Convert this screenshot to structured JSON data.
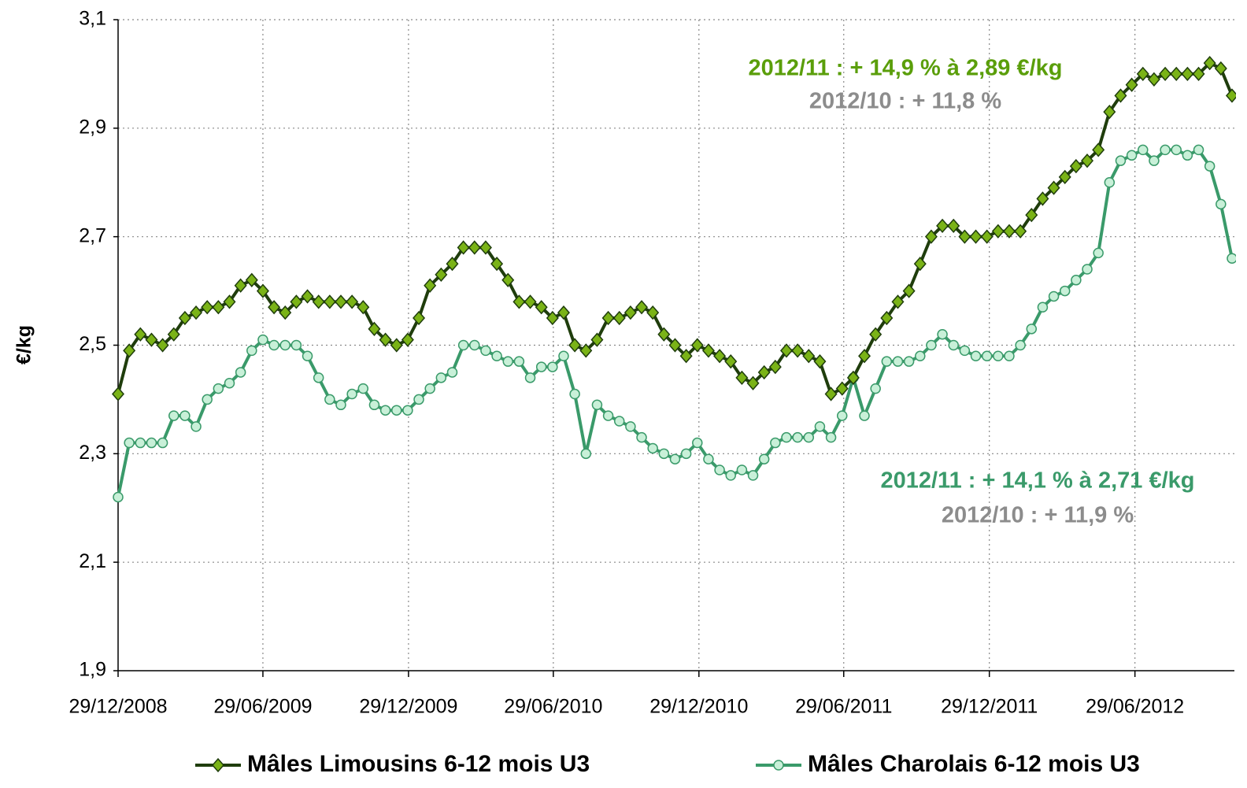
{
  "chart_data": {
    "type": "line",
    "y_label": "€/kg",
    "x": [
      "2008-12-29",
      "2009-01-12",
      "2009-01-26",
      "2009-02-09",
      "2009-02-23",
      "2009-03-09",
      "2009-03-23",
      "2009-04-06",
      "2009-04-20",
      "2009-05-04",
      "2009-05-18",
      "2009-06-01",
      "2009-06-15",
      "2009-06-29",
      "2009-07-13",
      "2009-07-27",
      "2009-08-10",
      "2009-08-24",
      "2009-09-07",
      "2009-09-21",
      "2009-10-05",
      "2009-10-19",
      "2009-11-02",
      "2009-11-16",
      "2009-11-30",
      "2009-12-14",
      "2009-12-28",
      "2010-01-11",
      "2010-01-25",
      "2010-02-08",
      "2010-02-22",
      "2010-03-08",
      "2010-03-22",
      "2010-04-05",
      "2010-04-19",
      "2010-05-03",
      "2010-05-17",
      "2010-05-31",
      "2010-06-14",
      "2010-06-28",
      "2010-07-12",
      "2010-07-26",
      "2010-08-09",
      "2010-08-23",
      "2010-09-06",
      "2010-09-20",
      "2010-10-04",
      "2010-10-18",
      "2010-11-01",
      "2010-11-15",
      "2010-11-29",
      "2010-12-13",
      "2010-12-27",
      "2011-01-10",
      "2011-01-24",
      "2011-02-07",
      "2011-02-21",
      "2011-03-07",
      "2011-03-21",
      "2011-04-04",
      "2011-04-18",
      "2011-05-02",
      "2011-05-16",
      "2011-05-30",
      "2011-06-13",
      "2011-06-27",
      "2011-07-11",
      "2011-07-25",
      "2011-08-08",
      "2011-08-22",
      "2011-09-05",
      "2011-09-19",
      "2011-10-03",
      "2011-10-17",
      "2011-10-31",
      "2011-11-14",
      "2011-11-28",
      "2011-12-12",
      "2011-12-26",
      "2012-01-09",
      "2012-01-23",
      "2012-02-06",
      "2012-02-20",
      "2012-03-05",
      "2012-03-19",
      "2012-04-02",
      "2012-04-16",
      "2012-04-30",
      "2012-05-14",
      "2012-05-28",
      "2012-06-11",
      "2012-06-25",
      "2012-07-09",
      "2012-07-23",
      "2012-08-06",
      "2012-08-20",
      "2012-09-03",
      "2012-09-17",
      "2012-10-01",
      "2012-10-15",
      "2012-10-29"
    ],
    "series": [
      {
        "name": "Mâles Limousins 6-12 mois U3",
        "color": "#1f3d0c",
        "marker_color": "#7ab317",
        "marker": "diamond",
        "values": [
          2.41,
          2.49,
          2.52,
          2.51,
          2.5,
          2.52,
          2.55,
          2.56,
          2.57,
          2.57,
          2.58,
          2.61,
          2.62,
          2.6,
          2.57,
          2.56,
          2.58,
          2.59,
          2.58,
          2.58,
          2.58,
          2.58,
          2.57,
          2.53,
          2.51,
          2.5,
          2.51,
          2.55,
          2.61,
          2.63,
          2.65,
          2.68,
          2.68,
          2.68,
          2.65,
          2.62,
          2.58,
          2.58,
          2.57,
          2.55,
          2.56,
          2.5,
          2.49,
          2.51,
          2.55,
          2.55,
          2.56,
          2.57,
          2.56,
          2.52,
          2.5,
          2.48,
          2.5,
          2.49,
          2.48,
          2.47,
          2.44,
          2.43,
          2.45,
          2.46,
          2.49,
          2.49,
          2.48,
          2.47,
          2.41,
          2.42,
          2.44,
          2.48,
          2.52,
          2.55,
          2.58,
          2.6,
          2.65,
          2.7,
          2.72,
          2.72,
          2.7,
          2.7,
          2.7,
          2.71,
          2.71,
          2.71,
          2.74,
          2.77,
          2.79,
          2.81,
          2.83,
          2.84,
          2.86,
          2.93,
          2.96,
          2.98,
          3.0,
          2.99,
          3.0,
          3.0,
          3.0,
          3.0,
          3.02,
          3.01,
          2.96
        ]
      },
      {
        "name": "Mâles Charolais 6-12 mois U3",
        "color": "#3a9a6a",
        "marker_color": "#c8f0d8",
        "marker": "circle",
        "values": [
          2.22,
          2.32,
          2.32,
          2.32,
          2.32,
          2.37,
          2.37,
          2.35,
          2.4,
          2.42,
          2.43,
          2.45,
          2.49,
          2.51,
          2.5,
          2.5,
          2.5,
          2.48,
          2.44,
          2.4,
          2.39,
          2.41,
          2.42,
          2.39,
          2.38,
          2.38,
          2.38,
          2.4,
          2.42,
          2.44,
          2.45,
          2.5,
          2.5,
          2.49,
          2.48,
          2.47,
          2.47,
          2.44,
          2.46,
          2.46,
          2.48,
          2.41,
          2.3,
          2.39,
          2.37,
          2.36,
          2.35,
          2.33,
          2.31,
          2.3,
          2.29,
          2.3,
          2.32,
          2.29,
          2.27,
          2.26,
          2.27,
          2.26,
          2.29,
          2.32,
          2.33,
          2.33,
          2.33,
          2.35,
          2.33,
          2.37,
          2.44,
          2.37,
          2.42,
          2.47,
          2.47,
          2.47,
          2.48,
          2.5,
          2.52,
          2.5,
          2.49,
          2.48,
          2.48,
          2.48,
          2.48,
          2.5,
          2.53,
          2.57,
          2.59,
          2.6,
          2.62,
          2.64,
          2.67,
          2.8,
          2.84,
          2.85,
          2.86,
          2.84,
          2.86,
          2.86,
          2.85,
          2.86,
          2.83,
          2.76,
          2.66
        ]
      }
    ],
    "xlim": [
      "2008-12-29",
      "2012-11-01"
    ],
    "xticks": [
      {
        "value": "2008-12-29",
        "label": "29/12/2008"
      },
      {
        "value": "2009-06-29",
        "label": "29/06/2009"
      },
      {
        "value": "2009-12-29",
        "label": "29/12/2009"
      },
      {
        "value": "2010-06-29",
        "label": "29/06/2010"
      },
      {
        "value": "2010-12-29",
        "label": "29/12/2010"
      },
      {
        "value": "2011-06-29",
        "label": "29/06/2011"
      },
      {
        "value": "2011-12-29",
        "label": "29/12/2011"
      },
      {
        "value": "2012-06-29",
        "label": "29/06/2012"
      }
    ],
    "ylim": [
      1.9,
      3.1
    ],
    "yticks": [
      {
        "value": 1.9,
        "label": "1,9"
      },
      {
        "value": 2.1,
        "label": "2,1"
      },
      {
        "value": 2.3,
        "label": "2,3"
      },
      {
        "value": 2.5,
        "label": "2,5"
      },
      {
        "value": 2.7,
        "label": "2,7"
      },
      {
        "value": 2.9,
        "label": "2,9"
      },
      {
        "value": 3.1,
        "label": "3,1"
      }
    ],
    "grid": true,
    "legend": "bottom",
    "annotations": [
      {
        "text": "2012/11 : + 14,9 % à 2,89 €/kg",
        "color": "#5a9e0a"
      },
      {
        "text": "2012/10 : + 11,8 %",
        "color": "#8c8c8c"
      },
      {
        "text": "2012/11 : + 14,1 % à 2,71 €/kg",
        "color": "#3a9a6a"
      },
      {
        "text": "2012/10 : + 11,9 %",
        "color": "#8c8c8c"
      }
    ]
  }
}
